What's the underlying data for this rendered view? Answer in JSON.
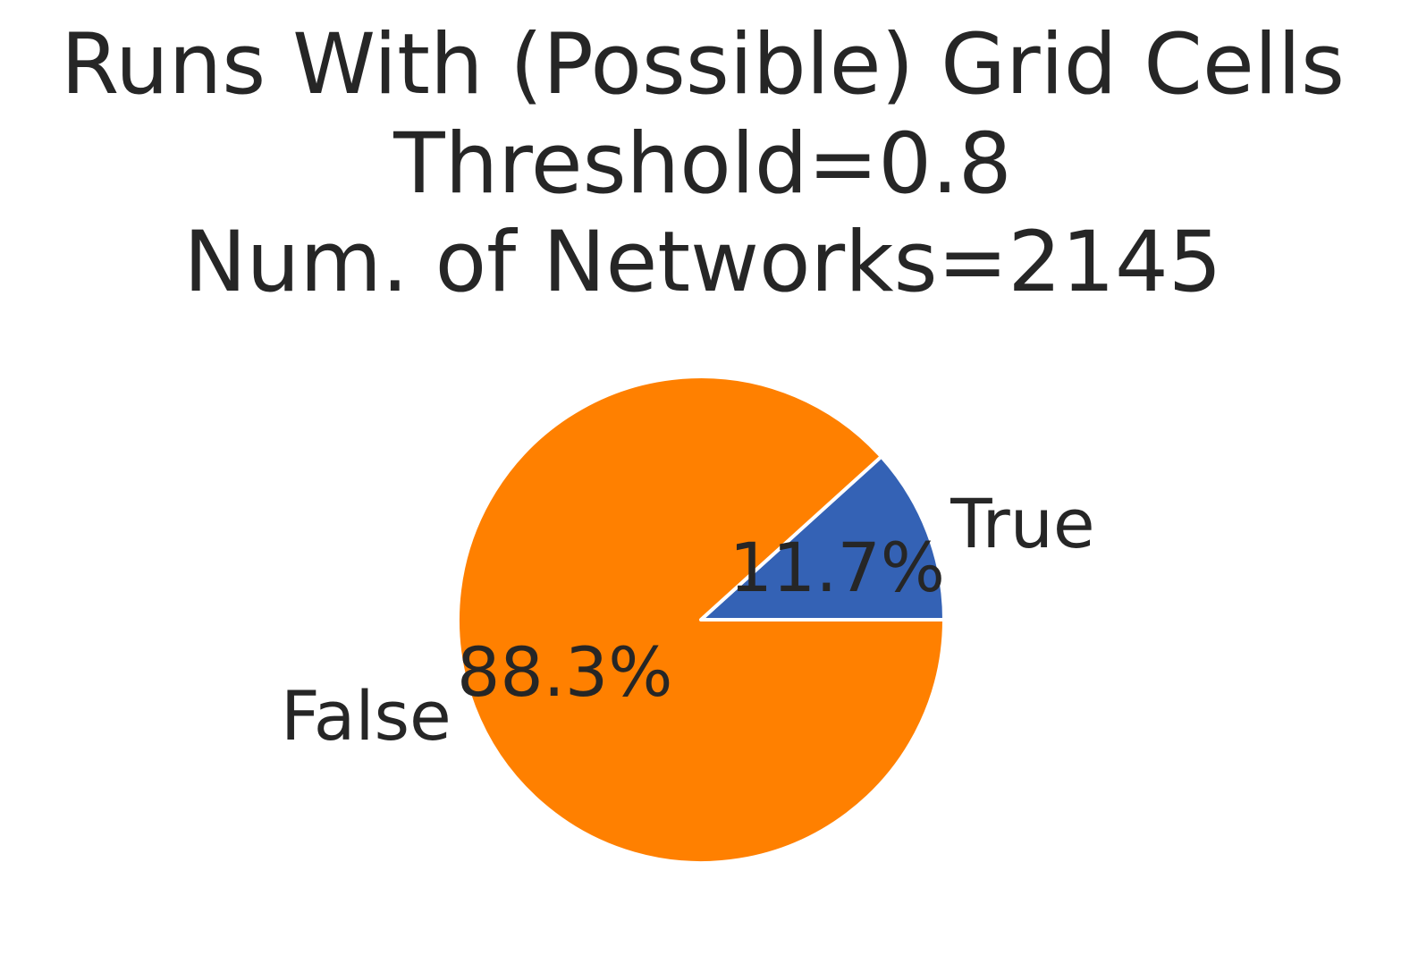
{
  "chart_data": {
    "type": "pie",
    "title_lines": [
      "Runs With (Possible) Grid Cells",
      "Threshold=0.8",
      "Num. of Networks=2145"
    ],
    "slices": [
      {
        "label": "True",
        "value": 11.7,
        "pct_label": "11.7%",
        "color": "#3462b5"
      },
      {
        "label": "False",
        "value": 88.3,
        "pct_label": "88.3%",
        "color": "#ff8000"
      }
    ],
    "start_angle_deg": 0,
    "direction": "counterclockwise",
    "wedge_edge_color": "#ffffff",
    "legend": "none"
  }
}
